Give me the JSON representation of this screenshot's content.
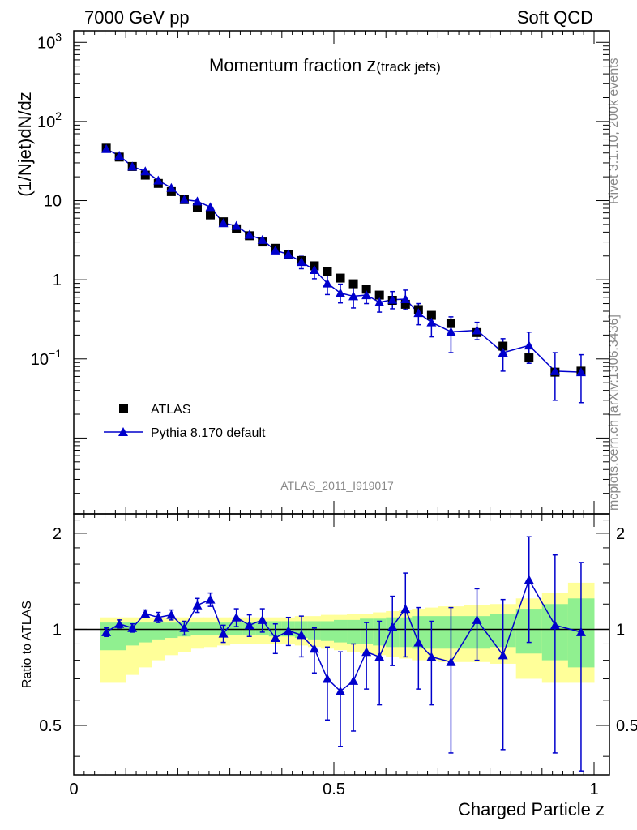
{
  "header": {
    "left": "7000 GeV pp",
    "right": "Soft QCD"
  },
  "side_labels": {
    "top": "Rivet 3.1.10,  200k events",
    "bottom": "mcplots.cern.ch [arXiv:1306.3436]"
  },
  "chart_data": {
    "type": "scatter",
    "title_main": "Momentum fraction ",
    "title_z": "z",
    "title_sub": "(track jets)",
    "analysis_id": "ATLAS_2011_I919017",
    "xlabel": "Charged Particle z",
    "ylabel": "(1/Njet)dN/dz",
    "ratio_ylabel": "Ratio to ATLAS",
    "xlim": [
      0,
      1
    ],
    "ylim": [
      0.0011,
      1400
    ],
    "ratio_ylim": [
      0.35,
      2.3
    ],
    "x_tick_labels": [
      "0",
      "0.5",
      "1"
    ],
    "y_tick_labels": [
      {
        "v": 1000,
        "base": "10",
        "exp": "3"
      },
      {
        "v": 100,
        "base": "10",
        "exp": "2"
      },
      {
        "v": 10,
        "base": "10",
        "exp": ""
      },
      {
        "v": 1,
        "base": "1",
        "exp": ""
      },
      {
        "v": 0.1,
        "base": "10",
        "exp": "−1"
      }
    ],
    "ratio_tick_labels": [
      "2",
      "1",
      "0.5"
    ],
    "legend": [
      {
        "label": "ATLAS"
      },
      {
        "label": "Pythia 8.170 default"
      }
    ],
    "colors": {
      "data": "#000000",
      "mc": "#0000cc",
      "band_inner": "#90f090",
      "band_outer": "#ffff99"
    },
    "x": [
      0.0625,
      0.0875,
      0.1125,
      0.1375,
      0.1625,
      0.1875,
      0.2125,
      0.2375,
      0.2625,
      0.2875,
      0.3125,
      0.3375,
      0.3625,
      0.3875,
      0.4125,
      0.4375,
      0.4625,
      0.4875,
      0.5125,
      0.5375,
      0.5625,
      0.5875,
      0.6125,
      0.6375,
      0.6625,
      0.6875,
      0.725,
      0.775,
      0.825,
      0.875,
      0.925,
      0.975
    ],
    "series": [
      {
        "name": "ATLAS",
        "values": [
          46,
          35.5,
          27,
          21,
          16.5,
          13,
          10.3,
          8.2,
          6.6,
          5.4,
          4.4,
          3.6,
          3.0,
          2.5,
          2.1,
          1.75,
          1.5,
          1.28,
          1.05,
          0.89,
          0.76,
          0.64,
          0.55,
          0.49,
          0.42,
          0.355,
          0.28,
          0.215,
          0.145,
          0.103,
          0.068,
          0.07
        ]
      },
      {
        "name": "Pythia 8.170 default",
        "values": [
          45,
          37,
          27,
          23.5,
          18,
          14.5,
          10.3,
          9.8,
          8.3,
          5.2,
          4.8,
          3.7,
          3.2,
          2.35,
          2.1,
          1.68,
          1.33,
          0.9,
          0.68,
          0.62,
          0.64,
          0.52,
          0.56,
          0.57,
          0.38,
          0.29,
          0.22,
          0.23,
          0.12,
          0.148,
          0.07,
          0.068
        ],
        "err_up": [
          2,
          1.5,
          1.3,
          1,
          1,
          0.8,
          0.6,
          0.6,
          0.5,
          0.4,
          0.4,
          0.3,
          0.3,
          0.25,
          0.25,
          0.3,
          0.3,
          0.28,
          0.2,
          0.2,
          0.15,
          0.15,
          0.15,
          0.17,
          0.12,
          0.1,
          0.12,
          0.06,
          0.06,
          0.07,
          0.05,
          0.045
        ],
        "err_dn": [
          2,
          1.5,
          1.3,
          1,
          1,
          0.8,
          0.6,
          0.6,
          0.5,
          0.4,
          0.4,
          0.3,
          0.3,
          0.25,
          0.25,
          0.3,
          0.3,
          0.25,
          0.17,
          0.18,
          0.14,
          0.13,
          0.13,
          0.15,
          0.11,
          0.1,
          0.1,
          0.055,
          0.05,
          0.06,
          0.04,
          0.04
        ]
      }
    ],
    "ratio": {
      "values": [
        0.98,
        1.04,
        1.01,
        1.12,
        1.09,
        1.11,
        1.01,
        1.19,
        1.24,
        0.97,
        1.09,
        1.03,
        1.07,
        0.94,
        0.99,
        0.96,
        0.87,
        0.7,
        0.64,
        0.69,
        0.85,
        0.82,
        1.02,
        1.16,
        0.91,
        0.82,
        0.79,
        1.07,
        0.83,
        1.43,
        1.03,
        0.98
      ],
      "err_up": [
        0.03,
        0.03,
        0.03,
        0.03,
        0.04,
        0.04,
        0.05,
        0.06,
        0.06,
        0.06,
        0.07,
        0.08,
        0.09,
        0.1,
        0.1,
        0.14,
        0.14,
        0.18,
        0.21,
        0.21,
        0.2,
        0.24,
        0.25,
        0.34,
        0.26,
        0.24,
        0.38,
        0.27,
        0.41,
        0.52,
        0.68,
        0.64
      ],
      "err_dn": [
        0.03,
        0.03,
        0.03,
        0.03,
        0.04,
        0.04,
        0.05,
        0.06,
        0.06,
        0.06,
        0.07,
        0.08,
        0.09,
        0.1,
        0.1,
        0.14,
        0.14,
        0.18,
        0.21,
        0.21,
        0.2,
        0.24,
        0.25,
        0.34,
        0.26,
        0.24,
        0.38,
        0.27,
        0.41,
        0.52,
        0.62,
        0.62
      ],
      "band_edges": [
        0.05,
        0.075,
        0.1,
        0.125,
        0.15,
        0.175,
        0.2,
        0.225,
        0.25,
        0.275,
        0.3,
        0.325,
        0.35,
        0.375,
        0.4,
        0.425,
        0.45,
        0.475,
        0.5,
        0.525,
        0.55,
        0.575,
        0.6,
        0.625,
        0.65,
        0.675,
        0.7,
        0.75,
        0.8,
        0.85,
        0.9,
        0.95,
        1.0
      ],
      "inner_up": [
        1.05,
        1.05,
        1.05,
        1.05,
        1.05,
        1.05,
        1.05,
        1.05,
        1.05,
        1.05,
        1.05,
        1.05,
        1.06,
        1.06,
        1.06,
        1.06,
        1.06,
        1.06,
        1.07,
        1.07,
        1.08,
        1.08,
        1.09,
        1.09,
        1.1,
        1.1,
        1.1,
        1.1,
        1.12,
        1.16,
        1.2,
        1.25
      ],
      "inner_dn": [
        0.86,
        0.86,
        0.89,
        0.91,
        0.93,
        0.94,
        0.95,
        0.96,
        0.96,
        0.96,
        0.96,
        0.96,
        0.96,
        0.95,
        0.95,
        0.94,
        0.93,
        0.92,
        0.91,
        0.9,
        0.9,
        0.89,
        0.88,
        0.88,
        0.87,
        0.87,
        0.87,
        0.87,
        0.88,
        0.84,
        0.8,
        0.76
      ],
      "outer_up": [
        1.09,
        1.09,
        1.09,
        1.09,
        1.09,
        1.09,
        1.09,
        1.09,
        1.09,
        1.09,
        1.09,
        1.09,
        1.09,
        1.09,
        1.09,
        1.1,
        1.1,
        1.11,
        1.11,
        1.12,
        1.12,
        1.13,
        1.14,
        1.15,
        1.16,
        1.17,
        1.18,
        1.19,
        1.2,
        1.25,
        1.3,
        1.4
      ],
      "outer_dn": [
        0.68,
        0.68,
        0.72,
        0.76,
        0.8,
        0.83,
        0.85,
        0.87,
        0.88,
        0.89,
        0.9,
        0.9,
        0.9,
        0.9,
        0.9,
        0.89,
        0.88,
        0.87,
        0.86,
        0.85,
        0.84,
        0.83,
        0.82,
        0.81,
        0.8,
        0.8,
        0.79,
        0.79,
        0.78,
        0.7,
        0.68,
        0.68
      ]
    }
  }
}
